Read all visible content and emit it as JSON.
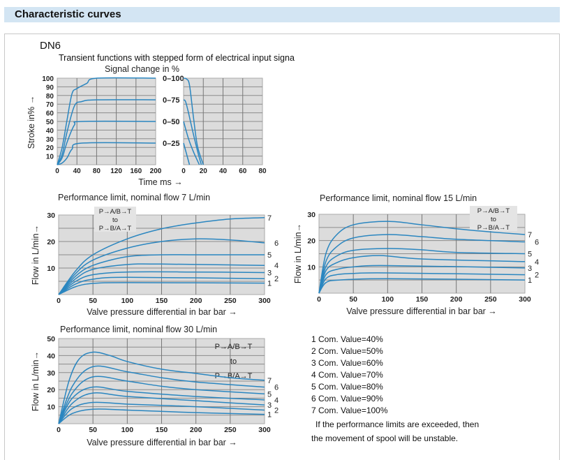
{
  "header": {
    "title": "Characteristic curves"
  },
  "section": {
    "label": "DN6",
    "subtitle": "Transient functions with stepped form of electrical input signa"
  },
  "colors": {
    "curve": "#2a86c0",
    "plot_bg": "#dcdcdc",
    "grid": "#9a9a9a",
    "header_bg": "#d3e5f3"
  },
  "legend": [
    "1  Com. Value=40%",
    "2  Com. Value=50%",
    "3  Com. Value=60%",
    "4  Com. Value=70%",
    "5  Com. Value=80%",
    "6  Com. Value=90%",
    "7  Com. Value=100%"
  ],
  "note": [
    "If the performance limits are exceeded, then",
    "the movement of spool will be unstable."
  ],
  "chart_data": [
    {
      "type": "line",
      "title": "Signal change in %",
      "xlabel": "Time ms →",
      "ylabel": "Stroke in% →",
      "xlim": [
        0,
        200
      ],
      "ylim": [
        0,
        100
      ],
      "xticks": [
        "0",
        "40",
        "80",
        "120",
        "160",
        "200"
      ],
      "yticks": [
        "10",
        "20",
        "30",
        "40",
        "50",
        "60",
        "70",
        "80",
        "90",
        "100"
      ],
      "grid": true,
      "series": [
        {
          "name": "0–100",
          "points": [
            [
              0,
              0
            ],
            [
              10,
              20
            ],
            [
              20,
              52
            ],
            [
              30,
              82
            ],
            [
              40,
              88
            ],
            [
              60,
              94
            ],
            [
              80,
              100
            ],
            [
              200,
              100
            ]
          ]
        },
        {
          "name": "0–75",
          "points": [
            [
              0,
              0
            ],
            [
              10,
              12
            ],
            [
              20,
              38
            ],
            [
              35,
              68
            ],
            [
              50,
              73
            ],
            [
              80,
              75
            ],
            [
              200,
              75
            ]
          ]
        },
        {
          "name": "0–50",
          "points": [
            [
              0,
              0
            ],
            [
              10,
              8
            ],
            [
              20,
              26
            ],
            [
              35,
              46
            ],
            [
              50,
              50
            ],
            [
              200,
              50
            ]
          ]
        },
        {
          "name": "0–25",
          "points": [
            [
              0,
              0
            ],
            [
              10,
              2
            ],
            [
              20,
              8
            ],
            [
              30,
              18
            ],
            [
              50,
              25
            ],
            [
              200,
              25
            ]
          ]
        }
      ]
    },
    {
      "type": "line",
      "xlim": [
        0,
        80
      ],
      "ylim": [
        0,
        100
      ],
      "xticks": [
        "0",
        "20",
        "40",
        "60",
        "80"
      ],
      "grid": true,
      "series": [
        {
          "points": [
            [
              0,
              100
            ],
            [
              3,
              99
            ],
            [
              6,
              92
            ],
            [
              10,
              55
            ],
            [
              14,
              22
            ],
            [
              20,
              0
            ]
          ]
        },
        {
          "points": [
            [
              0,
              75
            ],
            [
              2,
              73
            ],
            [
              5,
              60
            ],
            [
              10,
              35
            ],
            [
              15,
              12
            ],
            [
              18,
              0
            ]
          ]
        },
        {
          "points": [
            [
              0,
              50
            ],
            [
              5,
              30
            ],
            [
              10,
              15
            ],
            [
              16,
              0
            ]
          ]
        },
        {
          "points": [
            [
              0,
              25
            ],
            [
              6,
              0
            ]
          ]
        }
      ]
    },
    {
      "type": "line",
      "title": "Performance limit, nominal flow 7 L/min",
      "xlabel": "Valve pressure differential in bar  bar →",
      "ylabel": "Flow in L/min→",
      "xlim": [
        0,
        300
      ],
      "ylim": [
        0,
        30
      ],
      "xticks": [
        "0",
        "50",
        "100",
        "150",
        "200",
        "250",
        "300"
      ],
      "yticks": [
        "10",
        "20",
        "30"
      ],
      "annotation": [
        "P→A/B→T",
        "to",
        "P→B/A→T"
      ],
      "grid": true,
      "series": [
        {
          "name": "7",
          "points": [
            [
              0,
              0
            ],
            [
              25,
              9
            ],
            [
              50,
              15
            ],
            [
              100,
              21
            ],
            [
              150,
              24.8
            ],
            [
              200,
              27
            ],
            [
              250,
              28.5
            ],
            [
              300,
              29
            ]
          ]
        },
        {
          "name": "6",
          "points": [
            [
              0,
              0
            ],
            [
              25,
              8
            ],
            [
              50,
              13
            ],
            [
              100,
              17.5
            ],
            [
              150,
              20
            ],
            [
              200,
              21
            ],
            [
              250,
              20.6
            ],
            [
              300,
              19.5
            ]
          ]
        },
        {
          "name": "5",
          "points": [
            [
              0,
              0
            ],
            [
              25,
              7
            ],
            [
              50,
              11
            ],
            [
              100,
              14.3
            ],
            [
              150,
              15
            ],
            [
              200,
              15
            ],
            [
              300,
              15
            ]
          ]
        },
        {
          "name": "4",
          "points": [
            [
              0,
              0
            ],
            [
              25,
              6
            ],
            [
              50,
              9.5
            ],
            [
              100,
              11.3
            ],
            [
              150,
              11.5
            ],
            [
              300,
              11
            ]
          ]
        },
        {
          "name": "3",
          "points": [
            [
              0,
              0
            ],
            [
              25,
              5
            ],
            [
              50,
              7.5
            ],
            [
              100,
              8.5
            ],
            [
              200,
              8.5
            ],
            [
              300,
              8.3
            ]
          ]
        },
        {
          "name": "2",
          "points": [
            [
              0,
              0
            ],
            [
              25,
              4
            ],
            [
              50,
              5.8
            ],
            [
              100,
              6.5
            ],
            [
              300,
              6
            ]
          ]
        },
        {
          "name": "1",
          "points": [
            [
              0,
              0
            ],
            [
              25,
              3
            ],
            [
              50,
              4.2
            ],
            [
              100,
              4.5
            ],
            [
              300,
              4.3
            ]
          ]
        }
      ]
    },
    {
      "type": "line",
      "title": "Performance limit, nominal flow 15 L/min",
      "xlabel": "Valve pressure differential in bar  bar →",
      "ylabel": "Flow in L/min→",
      "xlim": [
        0,
        300
      ],
      "ylim": [
        0,
        30
      ],
      "xticks": [
        "0",
        "50",
        "100",
        "150",
        "200",
        "250",
        "300"
      ],
      "yticks": [
        "10",
        "20",
        "30"
      ],
      "annotation": [
        "P→A/B→T",
        "to",
        "P→B/A→T"
      ],
      "grid": true,
      "series": [
        {
          "name": "7",
          "points": [
            [
              0,
              0
            ],
            [
              10,
              15
            ],
            [
              25,
              22
            ],
            [
              50,
              26
            ],
            [
              100,
              27.3
            ],
            [
              150,
              26
            ],
            [
              200,
              24.5
            ],
            [
              250,
              23.3
            ],
            [
              300,
              22.3
            ]
          ]
        },
        {
          "name": "6",
          "points": [
            [
              0,
              0
            ],
            [
              10,
              12
            ],
            [
              25,
              17.5
            ],
            [
              50,
              21
            ],
            [
              100,
              22.3
            ],
            [
              150,
              21.5
            ],
            [
              200,
              20.5
            ],
            [
              300,
              19.5
            ]
          ]
        },
        {
          "name": "5",
          "points": [
            [
              0,
              0
            ],
            [
              10,
              10
            ],
            [
              25,
              14
            ],
            [
              50,
              16.3
            ],
            [
              100,
              17
            ],
            [
              150,
              16.5
            ],
            [
              200,
              15.5
            ],
            [
              300,
              15
            ]
          ]
        },
        {
          "name": "4",
          "points": [
            [
              0,
              0
            ],
            [
              10,
              8.5
            ],
            [
              25,
              11.5
            ],
            [
              50,
              13.5
            ],
            [
              90,
              14.3
            ],
            [
              150,
              13
            ],
            [
              300,
              12
            ]
          ]
        },
        {
          "name": "3",
          "points": [
            [
              0,
              0
            ],
            [
              10,
              7
            ],
            [
              25,
              9
            ],
            [
              50,
              10
            ],
            [
              100,
              10.5
            ],
            [
              300,
              9.6
            ]
          ]
        },
        {
          "name": "2",
          "points": [
            [
              0,
              0
            ],
            [
              10,
              5.5
            ],
            [
              25,
              7
            ],
            [
              50,
              7.5
            ],
            [
              100,
              7.7
            ],
            [
              300,
              7
            ]
          ]
        },
        {
          "name": "1",
          "points": [
            [
              0,
              0
            ],
            [
              10,
              4
            ],
            [
              30,
              5
            ],
            [
              100,
              5.5
            ],
            [
              300,
              5
            ]
          ]
        }
      ]
    },
    {
      "type": "line",
      "title": "Performance limit, nominal flow 30 L/min",
      "xlabel": "Valve pressure differential in bar  bar →",
      "ylabel": "Flow in L/min→",
      "xlim": [
        0,
        300
      ],
      "ylim": [
        0,
        50
      ],
      "xticks": [
        "0",
        "50",
        "100",
        "150",
        "200",
        "250",
        "300"
      ],
      "yticks": [
        "10",
        "20",
        "30",
        "40",
        "50"
      ],
      "annotation": [
        "P→A/B→T",
        "to",
        "P→B/A→T"
      ],
      "grid": true,
      "series": [
        {
          "name": "7",
          "points": [
            [
              0,
              0
            ],
            [
              15,
              25
            ],
            [
              30,
              38
            ],
            [
              50,
              42
            ],
            [
              75,
              40
            ],
            [
              100,
              36.5
            ],
            [
              150,
              32
            ],
            [
              200,
              29.5
            ],
            [
              250,
              27
            ],
            [
              300,
              25.5
            ]
          ]
        },
        {
          "name": "6",
          "points": [
            [
              0,
              0
            ],
            [
              20,
              22
            ],
            [
              50,
              33.5
            ],
            [
              100,
              30.5
            ],
            [
              150,
              27
            ],
            [
              200,
              24.5
            ],
            [
              300,
              21.5
            ]
          ]
        },
        {
          "name": "5",
          "points": [
            [
              0,
              0
            ],
            [
              20,
              18
            ],
            [
              50,
              27.5
            ],
            [
              100,
              25
            ],
            [
              150,
              22
            ],
            [
              200,
              20
            ],
            [
              300,
              17.5
            ]
          ]
        },
        {
          "name": "4",
          "points": [
            [
              0,
              0
            ],
            [
              20,
              15
            ],
            [
              50,
              21.5
            ],
            [
              100,
              19
            ],
            [
              200,
              16
            ],
            [
              300,
              14
            ]
          ]
        },
        {
          "name": "3",
          "points": [
            [
              0,
              0
            ],
            [
              20,
              12
            ],
            [
              50,
              18
            ],
            [
              100,
              16
            ],
            [
              200,
              13.5
            ],
            [
              300,
              11
            ]
          ]
        },
        {
          "name": "2",
          "points": [
            [
              0,
              0
            ],
            [
              20,
              9
            ],
            [
              50,
              12.5
            ],
            [
              100,
              11.5
            ],
            [
              200,
              10
            ],
            [
              300,
              8
            ]
          ]
        },
        {
          "name": "1",
          "points": [
            [
              0,
              0
            ],
            [
              20,
              6
            ],
            [
              50,
              8.5
            ],
            [
              100,
              8
            ],
            [
              200,
              6.5
            ],
            [
              300,
              5.5
            ]
          ]
        }
      ]
    }
  ]
}
